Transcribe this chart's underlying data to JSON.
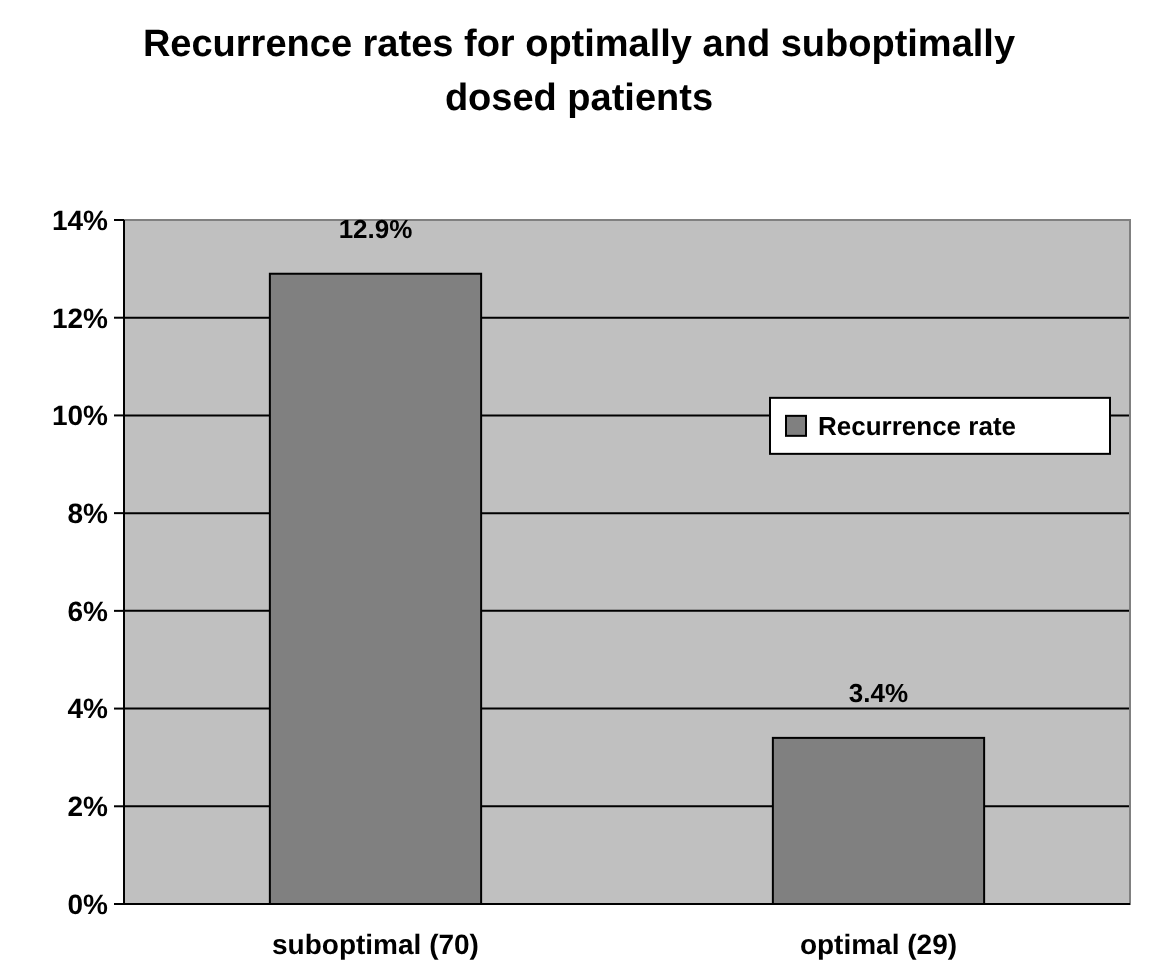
{
  "chart_data": {
    "type": "bar",
    "title": "Recurrence rates for optimally and suboptimally dosed patients",
    "categories": [
      "suboptimal (70)",
      "optimal (29)"
    ],
    "series": [
      {
        "name": "Recurrence rate",
        "color": "#808080",
        "values": [
          12.9,
          3.4
        ]
      }
    ],
    "value_labels": [
      "12.9%",
      "3.4%"
    ],
    "ylim": [
      0,
      14
    ],
    "yticks": [
      {
        "value": 0,
        "label": "0%"
      },
      {
        "value": 2,
        "label": "2%"
      },
      {
        "value": 4,
        "label": "4%"
      },
      {
        "value": 6,
        "label": "6%"
      },
      {
        "value": 8,
        "label": "8%"
      },
      {
        "value": 10,
        "label": "10%"
      },
      {
        "value": 12,
        "label": "12%"
      },
      {
        "value": 14,
        "label": "14%"
      }
    ],
    "grid": "y",
    "legend": "right"
  }
}
